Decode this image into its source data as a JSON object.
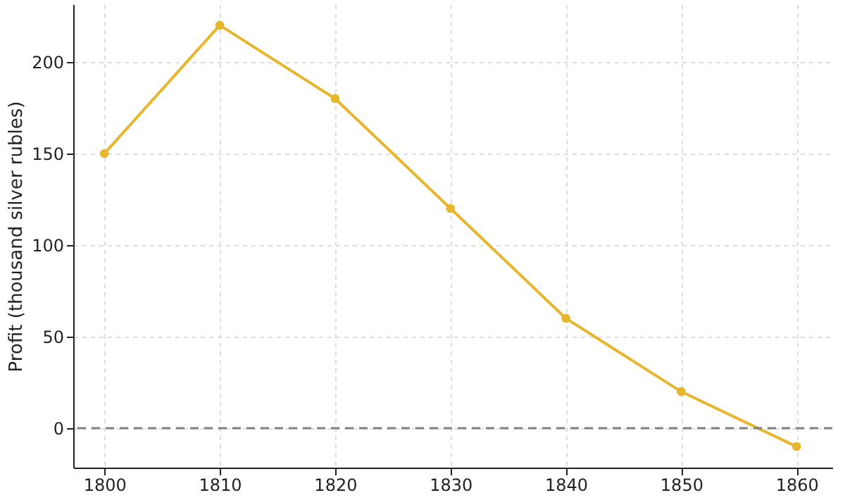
{
  "chart_data": {
    "type": "line",
    "ylabel": "Profit (thousand silver rubles)",
    "x": [
      1800,
      1810,
      1820,
      1830,
      1840,
      1850,
      1860
    ],
    "series": [
      {
        "color": "#e8b62c",
        "values": [
          150,
          220,
          180,
          120,
          60,
          20,
          -10
        ]
      }
    ],
    "xlim": [
      1797.3,
      1863.1
    ],
    "xticks": [
      1800,
      1810,
      1820,
      1830,
      1840,
      1850,
      1860
    ],
    "ylim": [
      -21.5,
      231.5
    ],
    "yticks": [
      0,
      50,
      100,
      150,
      200
    ],
    "grid": true,
    "marker": "circle",
    "line_style": "solid",
    "ref_lines": [
      {
        "axis": "y",
        "value": 0,
        "color": "#808080",
        "line_style": "dashed"
      }
    ]
  }
}
